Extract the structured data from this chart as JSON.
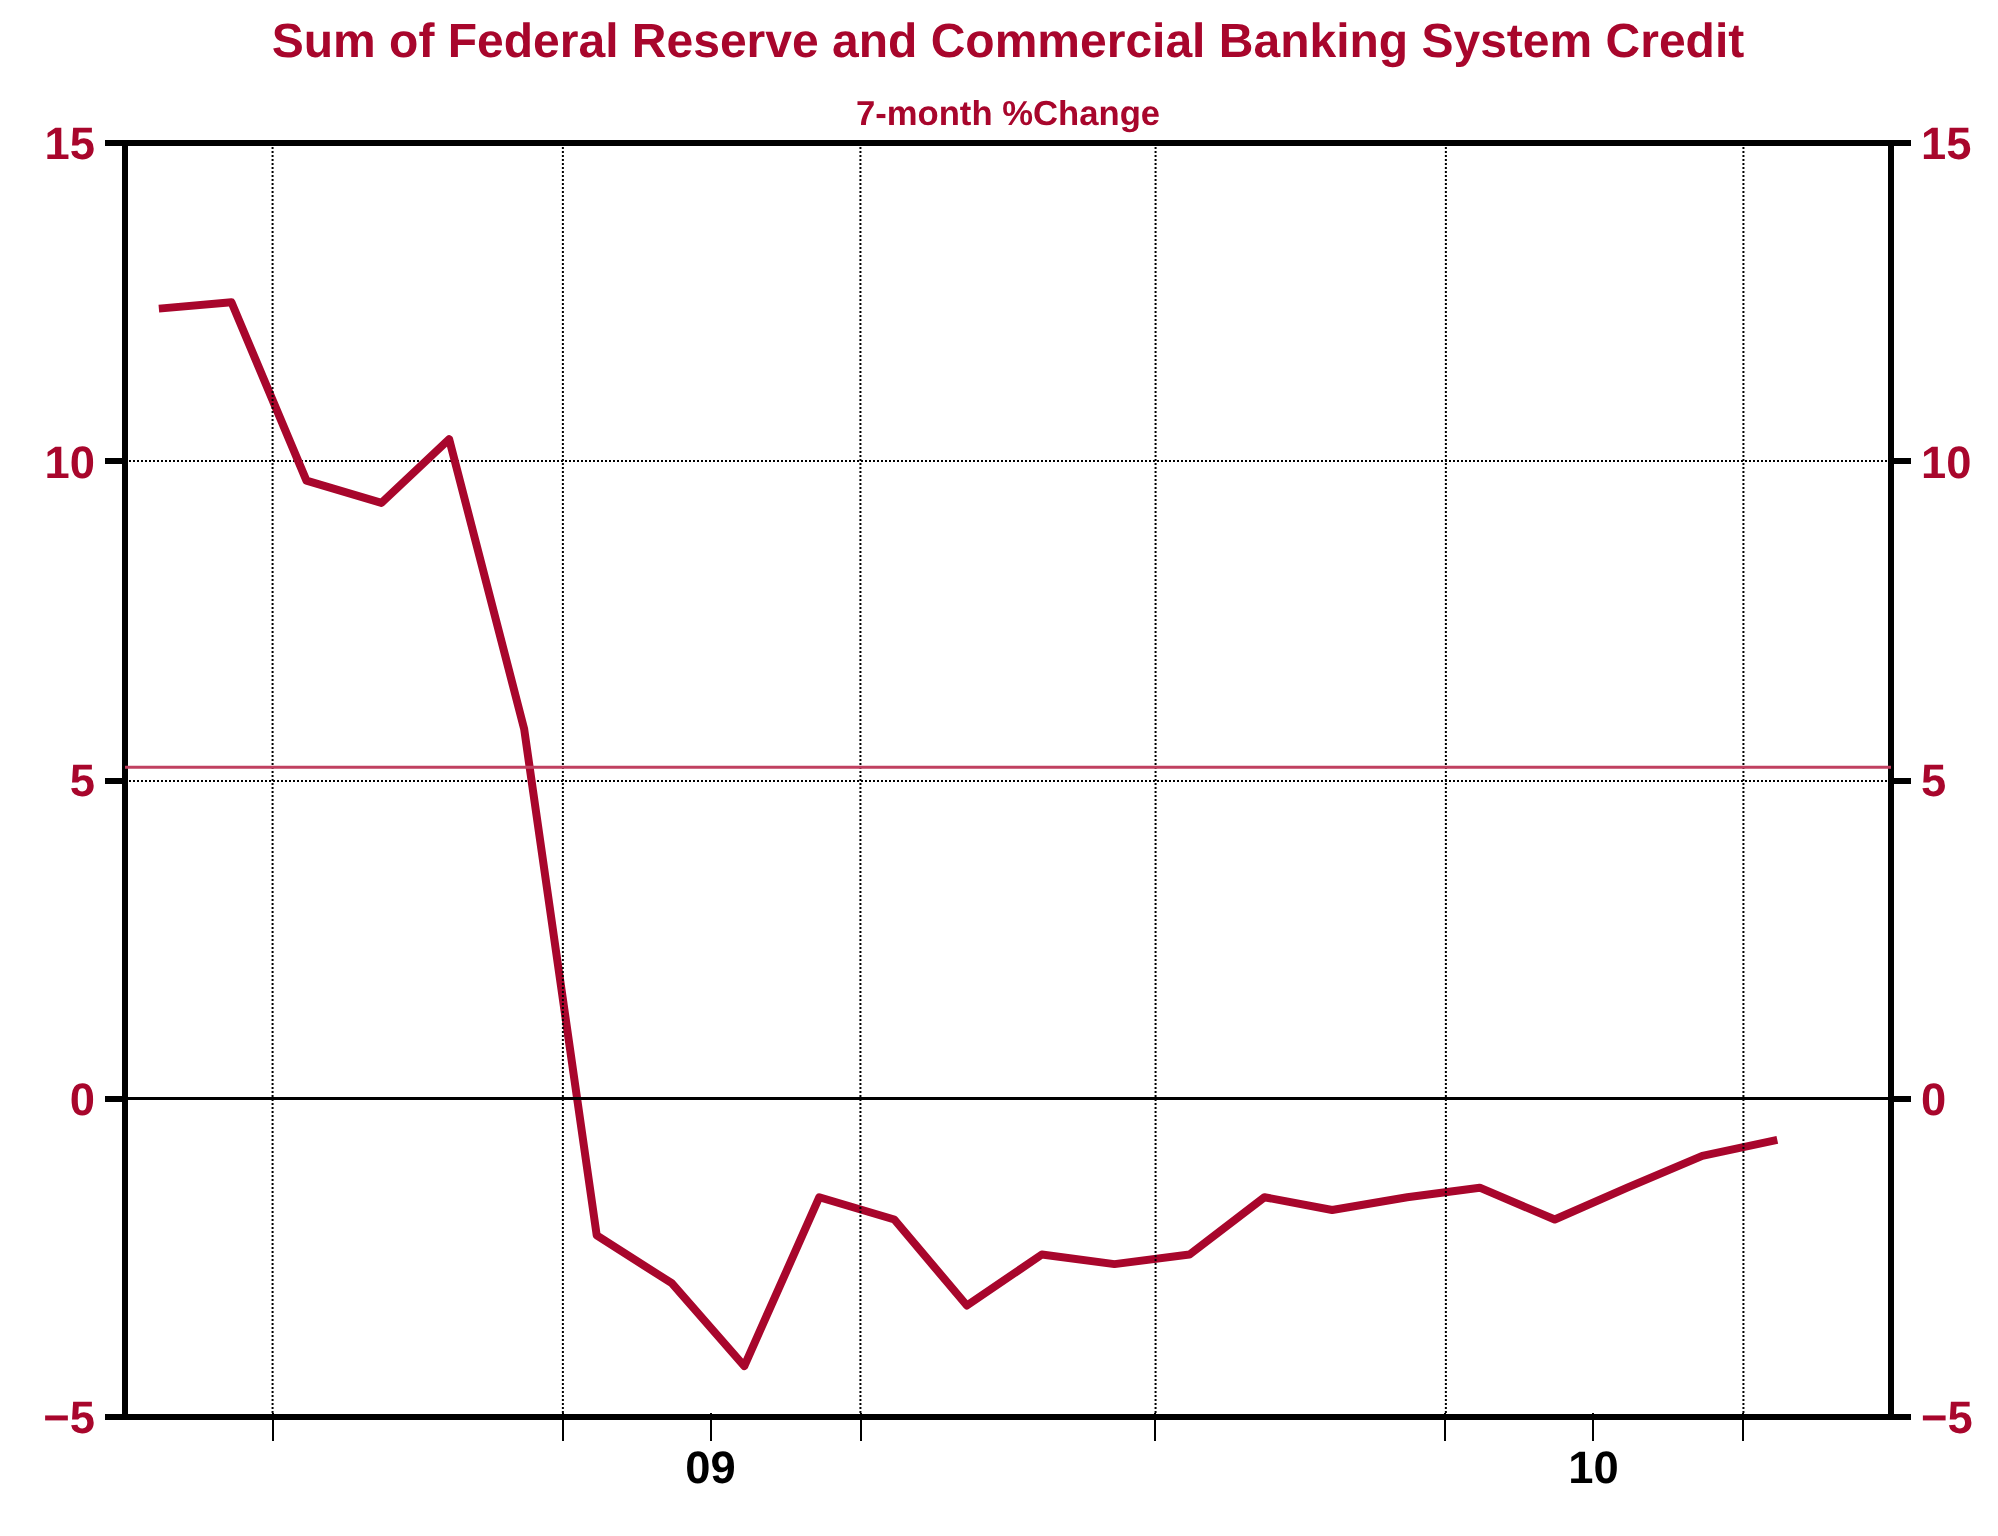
{
  "chart_data": {
    "type": "line",
    "title": "Sum of Federal Reserve and Commercial Banking System Credit",
    "subtitle": "7-month %Change",
    "x": [
      "2008-11-15",
      "2008-12-15",
      "2009-01-15",
      "2009-02-15",
      "2009-03-15",
      "2009-04-15",
      "2009-05-15",
      "2009-06-15",
      "2009-07-15",
      "2009-08-15",
      "2009-09-15",
      "2009-10-15",
      "2009-11-15",
      "2009-12-15",
      "2010-01-15",
      "2010-02-15",
      "2010-03-15",
      "2010-04-15",
      "2010-05-15",
      "2010-06-15",
      "2010-07-15",
      "2010-08-15",
      "2010-09-15"
    ],
    "series": [
      {
        "color": "#a8062c",
        "values": [
          12.4,
          12.5,
          9.7,
          9.35,
          10.35,
          5.8,
          -2.15,
          -2.9,
          -4.2,
          -1.55,
          -1.9,
          -3.25,
          -2.45,
          -2.6,
          -2.45,
          -1.55,
          -1.75,
          -1.55,
          -1.4,
          -1.9,
          -1.4,
          -0.9,
          -0.65
        ]
      }
    ],
    "xlim": [
      "2008-11-01",
      "2010-11-01"
    ],
    "xticks": [
      {
        "value": "2009-01-01",
        "label": null
      },
      {
        "value": "2009-05-01",
        "label": null
      },
      {
        "value": "2009-07-01",
        "label": "09"
      },
      {
        "value": "2009-09-01",
        "label": null
      },
      {
        "value": "2010-01-01",
        "label": null
      },
      {
        "value": "2010-05-01",
        "label": null
      },
      {
        "value": "2010-07-01",
        "label": "10"
      },
      {
        "value": "2010-09-01",
        "label": null
      }
    ],
    "ylim": [
      -5,
      15
    ],
    "yticks": [
      -5,
      0,
      5,
      10,
      15
    ],
    "y2lim": [
      -5,
      15
    ],
    "y2ticks": [
      -5,
      0,
      5,
      10,
      15
    ],
    "ref_lines": [
      {
        "axis": "y",
        "value": 0,
        "color": "#000000"
      },
      {
        "axis": "y",
        "value": 5.2,
        "color": "#c04060"
      }
    ],
    "grid": true
  }
}
